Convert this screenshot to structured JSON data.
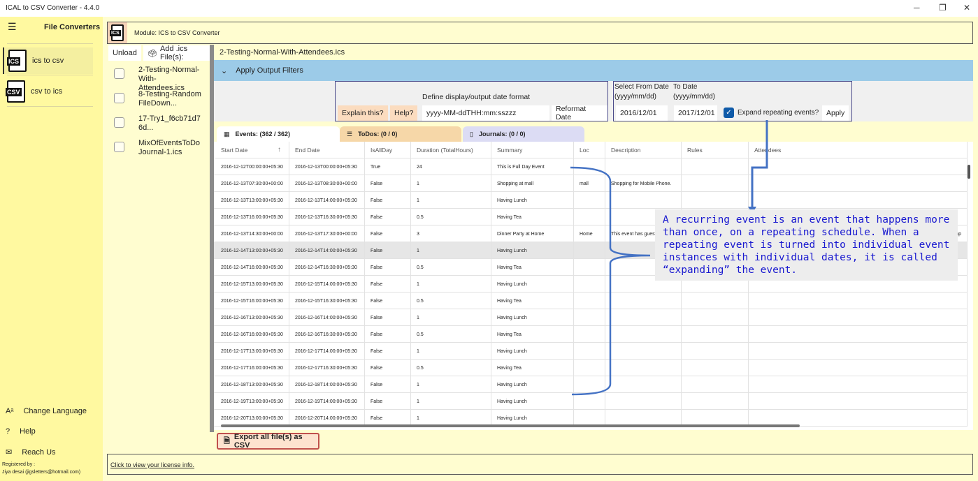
{
  "window": {
    "title": "ICAL to CSV Converter -  4.4.0",
    "minimize": "─",
    "restore": "❐",
    "close": "✕"
  },
  "sidebar": {
    "title": "File Converters",
    "items": [
      {
        "label": "ics to csv",
        "icon": "ICS"
      },
      {
        "label": "csv to ics",
        "icon": "CSV"
      }
    ],
    "bottom": [
      {
        "label": "Change Language",
        "icon": "Aᵃ"
      },
      {
        "label": "Help",
        "icon": "?"
      },
      {
        "label": "Reach Us",
        "icon": "✉"
      }
    ],
    "registered_label": "Registered by :",
    "registered_user": "Jiya desai (jigsletters@hotmail.com)"
  },
  "module": {
    "icon": "ICS",
    "title": "Module: ICS to CSV Converter"
  },
  "files": {
    "unload": "Unload",
    "add": "Add .ics File(s):",
    "items": [
      "2-Testing-Normal-With-Attendees.ics",
      "8-Testing-RandomFileDown...",
      "17-Try1_f6cb71d76d...",
      "MixOfEventsToDoJournal-1.ics"
    ]
  },
  "current_file": "2-Testing-Normal-With-Attendees.ics",
  "filters": {
    "title": "Apply Output Filters",
    "date_format_label": "Define display/output date format",
    "explain": "Explain this?",
    "help": "Help?",
    "format_value": "yyyy-MM-ddTHH:mm:sszzz",
    "reformat": "Reformat Date",
    "from_label": "Select From Date",
    "from_hint": "(yyyy/mm/dd)",
    "to_label": "To Date",
    "to_hint": "(yyyy/mm/dd)",
    "from_value": "2016/12/01",
    "to_value": "2017/12/01",
    "expand_label": "Expand repeating events?",
    "expand_checked": true,
    "apply": "Apply"
  },
  "tabs": [
    {
      "label": "Events: (362 / 362)",
      "color": "#ffffff"
    },
    {
      "label": "ToDos: (0 / 0)",
      "color": "#f6d7a8"
    },
    {
      "label": "Journals: (0 / 0)",
      "color": "#dcdcf4"
    }
  ],
  "table": {
    "columns": [
      "Start Date",
      "End Date",
      "IsAllDay",
      "Duration (TotalHours)",
      "Summary",
      "Loc",
      "Description",
      "Rules",
      "Attendees"
    ],
    "rows": [
      [
        "2016-12-12T00:00:00+05:30",
        "2016-12-13T00:00:00+05:30",
        "True",
        "24",
        "This is Full Day Event",
        "",
        "",
        "",
        ""
      ],
      [
        "2016-12-13T07:30:00+00:00",
        "2016-12-13T08:30:00+00:00",
        "False",
        "1",
        "Shopping at mall",
        "mall",
        "Shopping for Mobile Phone.",
        "",
        ""
      ],
      [
        "2016-12-13T13:00:00+05:30",
        "2016-12-13T14:00:00+05:30",
        "False",
        "1",
        "Having Lunch",
        "",
        "",
        "",
        ""
      ],
      [
        "2016-12-13T16:00:00+05:30",
        "2016-12-13T16:30:00+05:30",
        "False",
        "0.5",
        "Having Tea",
        "",
        "",
        "",
        ""
      ],
      [
        "2016-12-13T14:30:00+00:00",
        "2016-12-13T17:30:00+00:00",
        "False",
        "3",
        "Dinner Party at Home",
        "Home",
        "This event has guests",
        "",
        "ump"
      ],
      [
        "2016-12-14T13:00:00+05:30",
        "2016-12-14T14:00:00+05:30",
        "False",
        "1",
        "Having Lunch",
        "",
        "",
        "",
        ""
      ],
      [
        "2016-12-14T16:00:00+05:30",
        "2016-12-14T16:30:00+05:30",
        "False",
        "0.5",
        "Having Tea",
        "",
        "",
        "",
        ""
      ],
      [
        "2016-12-15T13:00:00+05:30",
        "2016-12-15T14:00:00+05:30",
        "False",
        "1",
        "Having Lunch",
        "",
        "",
        "",
        ""
      ],
      [
        "2016-12-15T16:00:00+05:30",
        "2016-12-15T16:30:00+05:30",
        "False",
        "0.5",
        "Having Tea",
        "",
        "",
        "",
        ""
      ],
      [
        "2016-12-16T13:00:00+05:30",
        "2016-12-16T14:00:00+05:30",
        "False",
        "1",
        "Having Lunch",
        "",
        "",
        "",
        ""
      ],
      [
        "2016-12-16T16:00:00+05:30",
        "2016-12-16T16:30:00+05:30",
        "False",
        "0.5",
        "Having Tea",
        "",
        "",
        "",
        ""
      ],
      [
        "2016-12-17T13:00:00+05:30",
        "2016-12-17T14:00:00+05:30",
        "False",
        "1",
        "Having Lunch",
        "",
        "",
        "",
        ""
      ],
      [
        "2016-12-17T16:00:00+05:30",
        "2016-12-17T16:30:00+05:30",
        "False",
        "0.5",
        "Having Tea",
        "",
        "",
        "",
        ""
      ],
      [
        "2016-12-18T13:00:00+05:30",
        "2016-12-18T14:00:00+05:30",
        "False",
        "1",
        "Having Lunch",
        "",
        "",
        "",
        ""
      ],
      [
        "2016-12-19T13:00:00+05:30",
        "2016-12-19T14:00:00+05:30",
        "False",
        "1",
        "Having Lunch",
        "",
        "",
        "",
        ""
      ],
      [
        "2016-12-20T13:00:00+05:30",
        "2016-12-20T14:00:00+05:30",
        "False",
        "1",
        "Having Lunch",
        "",
        "",
        "",
        ""
      ]
    ],
    "selected_row": 5
  },
  "export": "Export all file(s) as CSV",
  "license": "Click to view your license info.",
  "annotation": {
    "text": "A recurring event is an event that happens more than once, on a repeating schedule. When a repeating event is turned into individual event instances with individual dates, it is called “expanding” the event.",
    "color": "#4472c4"
  }
}
